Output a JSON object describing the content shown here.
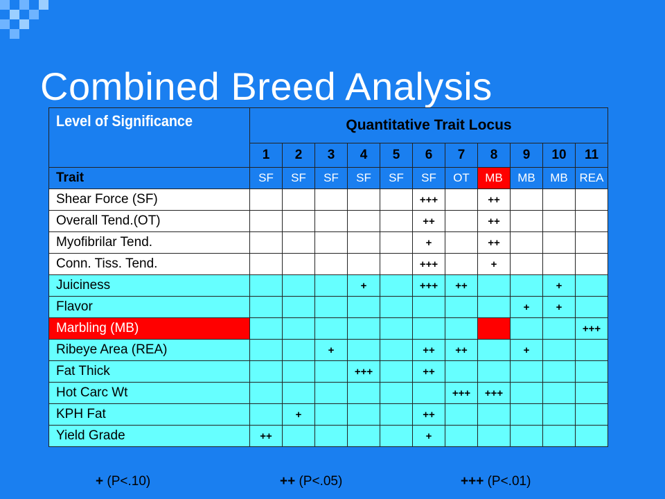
{
  "title": "Combined Breed Analysis",
  "header": {
    "significance_label": "Level of Significance",
    "qtl_label": "Quantitative Trait Locus",
    "trait_label": "Trait"
  },
  "loci": [
    "1",
    "2",
    "3",
    "4",
    "5",
    "6",
    "7",
    "8",
    "9",
    "10",
    "11"
  ],
  "locus_traits": [
    "SF",
    "SF",
    "SF",
    "SF",
    "SF",
    "SF",
    "OT",
    "MB",
    "MB",
    "MB",
    "REA"
  ],
  "rows": [
    {
      "name": "Shear Force (SF)",
      "style": "white",
      "cells": [
        "",
        "",
        "",
        "",
        "",
        "+++",
        "",
        "++",
        "",
        "",
        ""
      ]
    },
    {
      "name": "Overall Tend.(OT)",
      "style": "white",
      "cells": [
        "",
        "",
        "",
        "",
        "",
        "++",
        "",
        "++",
        "",
        "",
        ""
      ]
    },
    {
      "name": "Myofibrilar Tend.",
      "style": "white",
      "cells": [
        "",
        "",
        "",
        "",
        "",
        "+",
        "",
        "++",
        "",
        "",
        ""
      ]
    },
    {
      "name": "Conn. Tiss. Tend.",
      "style": "white",
      "cells": [
        "",
        "",
        "",
        "",
        "",
        "+++",
        "",
        "+",
        "",
        "",
        ""
      ]
    },
    {
      "name": "Juiciness",
      "style": "cyan",
      "cells": [
        "",
        "",
        "",
        "+",
        "",
        "+++",
        "++",
        "",
        "",
        "+",
        ""
      ]
    },
    {
      "name": "Flavor",
      "style": "cyan",
      "cells": [
        "",
        "",
        "",
        "",
        "",
        "",
        "",
        "",
        "+",
        "+",
        ""
      ]
    },
    {
      "name": "Marbling (MB)",
      "style": "red",
      "cells": [
        "",
        "",
        "",
        "",
        "",
        "",
        "",
        "",
        "",
        "",
        "+++"
      ]
    },
    {
      "name": "Ribeye Area (REA)",
      "style": "cyan",
      "cells": [
        "",
        "",
        "+",
        "",
        "",
        "++",
        "++",
        "",
        "+",
        "",
        ""
      ]
    },
    {
      "name": "Fat Thick",
      "style": "cyan",
      "cells": [
        "",
        "",
        "",
        "+++",
        "",
        "++",
        "",
        "",
        "",
        "",
        ""
      ]
    },
    {
      "name": "Hot Carc Wt",
      "style": "cyan",
      "cells": [
        "",
        "",
        "",
        "",
        "",
        "",
        "+++",
        "+++",
        "",
        "",
        ""
      ]
    },
    {
      "name": "KPH Fat",
      "style": "cyan",
      "cells": [
        "",
        "+",
        "",
        "",
        "",
        "++",
        "",
        "",
        "",
        "",
        ""
      ]
    },
    {
      "name": "Yield Grade",
      "style": "cyan",
      "cells": [
        "++",
        "",
        "",
        "",
        "",
        "+",
        "",
        "",
        "",
        "",
        ""
      ]
    }
  ],
  "legend": [
    {
      "symbol": "+",
      "text": "(P<.10)"
    },
    {
      "symbol": "++",
      "text": "(P<.05)"
    },
    {
      "symbol": "+++",
      "text": "(P<.01)"
    }
  ],
  "colors": {
    "background": "#1a7ff0",
    "cyan_row": "#66ffff",
    "highlight": "#ff0000"
  }
}
